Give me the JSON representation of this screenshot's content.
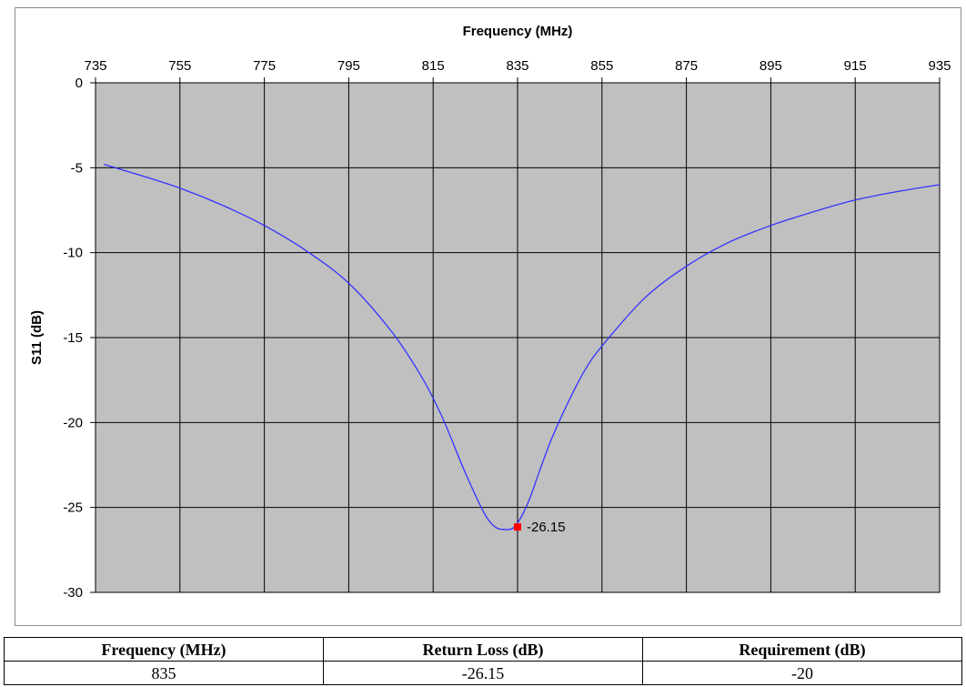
{
  "chart_data": {
    "type": "line",
    "title": "",
    "xlabel": "Frequency (MHz)",
    "ylabel": "S11 (dB)",
    "x_axis_position": "top",
    "xlim": [
      735,
      935
    ],
    "ylim": [
      -30,
      0
    ],
    "x_ticks": [
      735,
      755,
      775,
      795,
      815,
      835,
      855,
      875,
      895,
      915,
      935
    ],
    "y_ticks": [
      0,
      -5,
      -10,
      -15,
      -20,
      -25,
      -30
    ],
    "grid": true,
    "plot_background": "#c0c0c0",
    "series": [
      {
        "color": "#3333ff",
        "x": [
          737,
          745,
          755,
          765,
          775,
          785,
          795,
          805,
          812,
          817,
          822,
          826,
          828,
          830,
          832,
          834,
          836,
          838,
          840,
          843,
          847,
          851,
          855,
          865,
          875,
          885,
          895,
          905,
          915,
          925,
          935
        ],
        "y": [
          -4.8,
          -5.4,
          -6.2,
          -7.2,
          -8.4,
          -9.9,
          -11.8,
          -14.6,
          -17.2,
          -19.6,
          -22.6,
          -24.8,
          -25.7,
          -26.2,
          -26.3,
          -26.2,
          -25.5,
          -24.4,
          -23.0,
          -21.0,
          -18.8,
          -16.9,
          -15.5,
          -12.7,
          -10.8,
          -9.4,
          -8.4,
          -7.6,
          -6.9,
          -6.4,
          -6.0
        ]
      }
    ],
    "marker": {
      "x": 835,
      "y": -26.15,
      "label": "-26.15",
      "color": "#ff0000"
    }
  },
  "table": {
    "headers": [
      "Frequency (MHz)",
      "Return Loss (dB)",
      "Requirement (dB)"
    ],
    "rows": [
      [
        "835",
        "-26.15",
        "-20"
      ]
    ]
  }
}
